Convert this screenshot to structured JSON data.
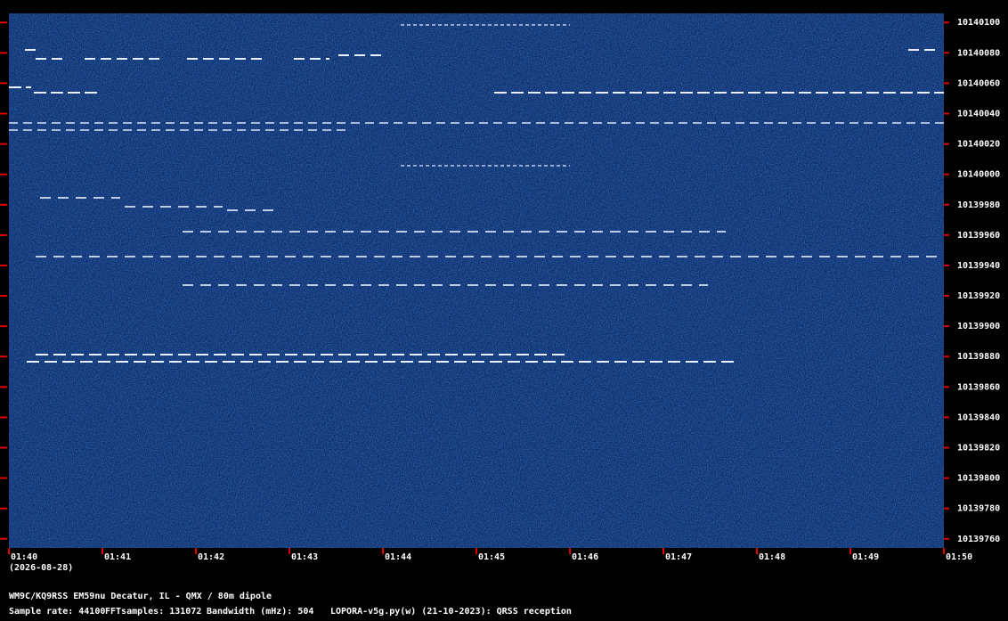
{
  "chart_data": {
    "type": "spectrogram",
    "date": "(2026-08-28)",
    "station": "WM9C/KQ9RSS EM59nu Decatur, IL - QMX / 80m dipole",
    "footer": [
      "Sample rate: 44100",
      "FFTsamples: 131072",
      "Bandwidth (mHz): 504",
      "LOPORA-v5g.py(w) (21-10-2023): QRSS reception"
    ],
    "categories": [
      "01:40",
      "01:41",
      "01:42",
      "01:43",
      "01:44",
      "01:45",
      "01:46",
      "01:47",
      "01:48",
      "01:49",
      "01:50"
    ],
    "ylim": [
      10139754,
      10140106
    ],
    "yticks": [
      10140100,
      10140080,
      10140060,
      10140040,
      10140020,
      10140000,
      10139980,
      10139960,
      10139940,
      10139920,
      10139900,
      10139880,
      10139860,
      10139840,
      10139820,
      10139800,
      10139780,
      10139760
    ],
    "tick_color": "#e00000"
  }
}
